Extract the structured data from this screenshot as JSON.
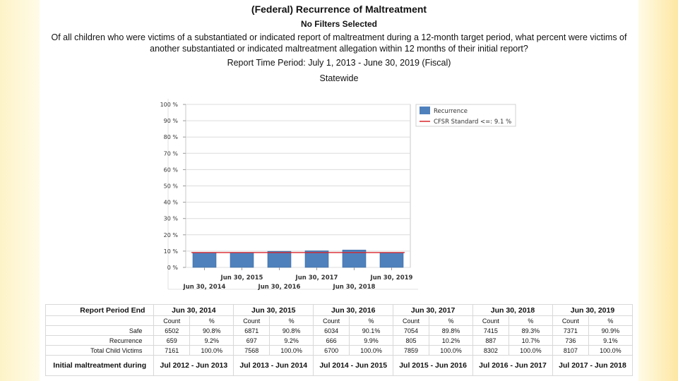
{
  "header": {
    "title": "(Federal) Recurrence of Maltreatment",
    "filters": "No Filters Selected",
    "question": "Of all children who were victims of a substantiated or indicated report of maltreatment during a 12-month target period, what percent were victims of another substantiated or indicated maltreatment allegation within 12 months of their initial report?",
    "period": "Report Time Period: July 1, 2013 - June 30, 2019 (Fiscal)",
    "scope": "Statewide"
  },
  "chart_data": {
    "type": "bar",
    "categories": [
      "Jun 30, 2014",
      "Jun 30, 2015",
      "Jun 30, 2016",
      "Jun 30, 2017",
      "Jun 30, 2018",
      "Jun 30, 2019"
    ],
    "series": [
      {
        "name": "Recurrence",
        "values": [
          9.2,
          9.2,
          9.9,
          10.2,
          10.7,
          9.1
        ],
        "color": "#4f81bd"
      },
      {
        "name": "CFSR Standard <=: 9.1 %",
        "values": [
          9.1,
          9.1,
          9.1,
          9.1,
          9.1,
          9.1
        ],
        "color": "#d9262b"
      }
    ],
    "y_ticks": [
      "100 %",
      "90 %",
      "80 %",
      "70 %",
      "60 %",
      "50 %",
      "40 %",
      "30 %",
      "20 %",
      "10 %",
      "0 %"
    ],
    "ylim": [
      0,
      100
    ],
    "legend": "top-right",
    "grid": true
  },
  "table": {
    "header_label": "Report Period End",
    "periods": [
      "Jun 30, 2014",
      "Jun 30, 2015",
      "Jun 30, 2016",
      "Jun 30, 2017",
      "Jun 30, 2018",
      "Jun 30, 2019"
    ],
    "sub_headers": [
      "Count",
      "%"
    ],
    "rows": [
      {
        "label": "Safe",
        "cells": [
          "6502",
          "90.8%",
          "6871",
          "90.8%",
          "6034",
          "90.1%",
          "7054",
          "89.8%",
          "7415",
          "89.3%",
          "7371",
          "90.9%"
        ]
      },
      {
        "label": "Recurrence",
        "cells": [
          "659",
          "9.2%",
          "697",
          "9.2%",
          "666",
          "9.9%",
          "805",
          "10.2%",
          "887",
          "10.7%",
          "736",
          "9.1%"
        ]
      },
      {
        "label": "Total Child Victims",
        "cells": [
          "7161",
          "100.0%",
          "7568",
          "100.0%",
          "6700",
          "100.0%",
          "7859",
          "100.0%",
          "8302",
          "100.0%",
          "8107",
          "100.0%"
        ]
      }
    ],
    "footer_label": "Initial maltreatment during",
    "footer_values": [
      "Jul 2012 - Jun 2013",
      "Jul 2013 - Jun 2014",
      "Jul 2014 - Jun 2015",
      "Jul 2015 - Jun 2016",
      "Jul 2016 - Jun 2017",
      "Jul 2017 - Jun 2018"
    ]
  }
}
